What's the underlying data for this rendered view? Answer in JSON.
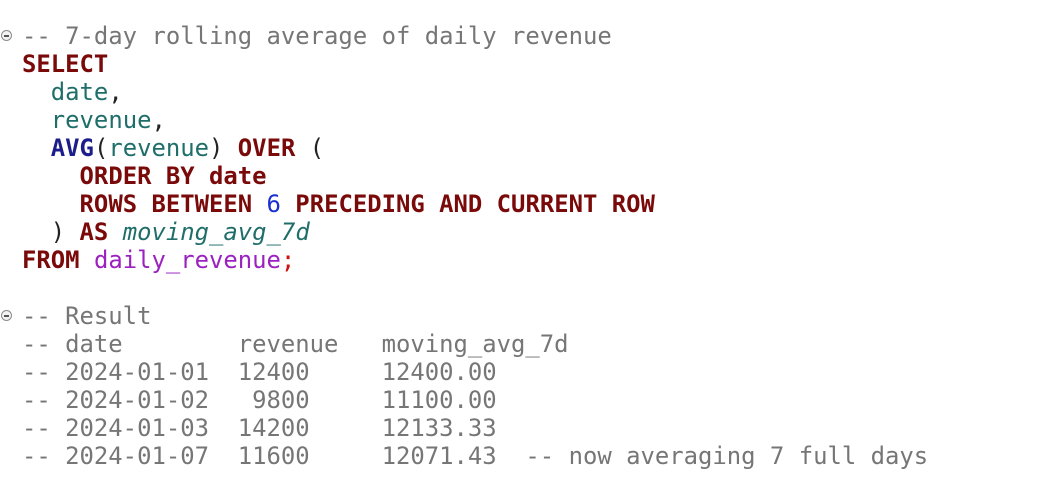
{
  "editor": {
    "language": "sql",
    "lines": [
      {
        "fold": true,
        "tokens": [
          {
            "t": "comment",
            "v": "-- 7-day rolling average of daily revenue"
          }
        ]
      },
      {
        "tokens": [
          {
            "t": "kw",
            "v": "SELECT"
          }
        ]
      },
      {
        "tokens": [
          {
            "t": "plain",
            "v": "  "
          },
          {
            "t": "ident",
            "v": "date"
          },
          {
            "t": "plain",
            "v": ","
          }
        ]
      },
      {
        "tokens": [
          {
            "t": "plain",
            "v": "  "
          },
          {
            "t": "ident",
            "v": "revenue"
          },
          {
            "t": "plain",
            "v": ","
          }
        ]
      },
      {
        "tokens": [
          {
            "t": "plain",
            "v": "  "
          },
          {
            "t": "fn",
            "v": "AVG"
          },
          {
            "t": "plain",
            "v": "("
          },
          {
            "t": "ident",
            "v": "revenue"
          },
          {
            "t": "plain",
            "v": ") "
          },
          {
            "t": "kw",
            "v": "OVER"
          },
          {
            "t": "plain",
            "v": " ("
          }
        ]
      },
      {
        "tokens": [
          {
            "t": "plain",
            "v": "    "
          },
          {
            "t": "kw",
            "v": "ORDER BY date"
          }
        ]
      },
      {
        "tokens": [
          {
            "t": "plain",
            "v": "    "
          },
          {
            "t": "kw",
            "v": "ROWS BETWEEN "
          },
          {
            "t": "num",
            "v": "6"
          },
          {
            "t": "kw",
            "v": " PRECEDING AND CURRENT ROW"
          }
        ]
      },
      {
        "tokens": [
          {
            "t": "plain",
            "v": "  ) "
          },
          {
            "t": "kw",
            "v": "AS"
          },
          {
            "t": "plain",
            "v": " "
          },
          {
            "t": "alias",
            "v": "moving_avg_7d"
          }
        ]
      },
      {
        "tokens": [
          {
            "t": "kw",
            "v": "FROM"
          },
          {
            "t": "plain",
            "v": " "
          },
          {
            "t": "table",
            "v": "daily_revenue"
          },
          {
            "t": "semi",
            "v": ";"
          }
        ]
      },
      {
        "tokens": []
      },
      {
        "fold": true,
        "tokens": [
          {
            "t": "comment",
            "v": "-- Result"
          }
        ]
      },
      {
        "tokens": [
          {
            "t": "comment",
            "v": "-- date        revenue   moving_avg_7d"
          }
        ]
      },
      {
        "tokens": [
          {
            "t": "comment",
            "v": "-- 2024-01-01  12400     12400.00"
          }
        ]
      },
      {
        "tokens": [
          {
            "t": "comment",
            "v": "-- 2024-01-02   9800     11100.00"
          }
        ]
      },
      {
        "tokens": [
          {
            "t": "comment",
            "v": "-- 2024-01-03  14200     12133.33"
          }
        ]
      },
      {
        "tokens": [
          {
            "t": "comment",
            "v": "-- 2024-01-07  11600     12071.43  -- now averaging 7 full days"
          }
        ]
      }
    ]
  },
  "colors": {
    "comment": "#767676",
    "keyword": "#7a0a0a",
    "function": "#1c1c8a",
    "identifier": "#1f6e6a",
    "number": "#1a2fd0",
    "table": "#9b22c0",
    "semicolon": "#d01010"
  }
}
